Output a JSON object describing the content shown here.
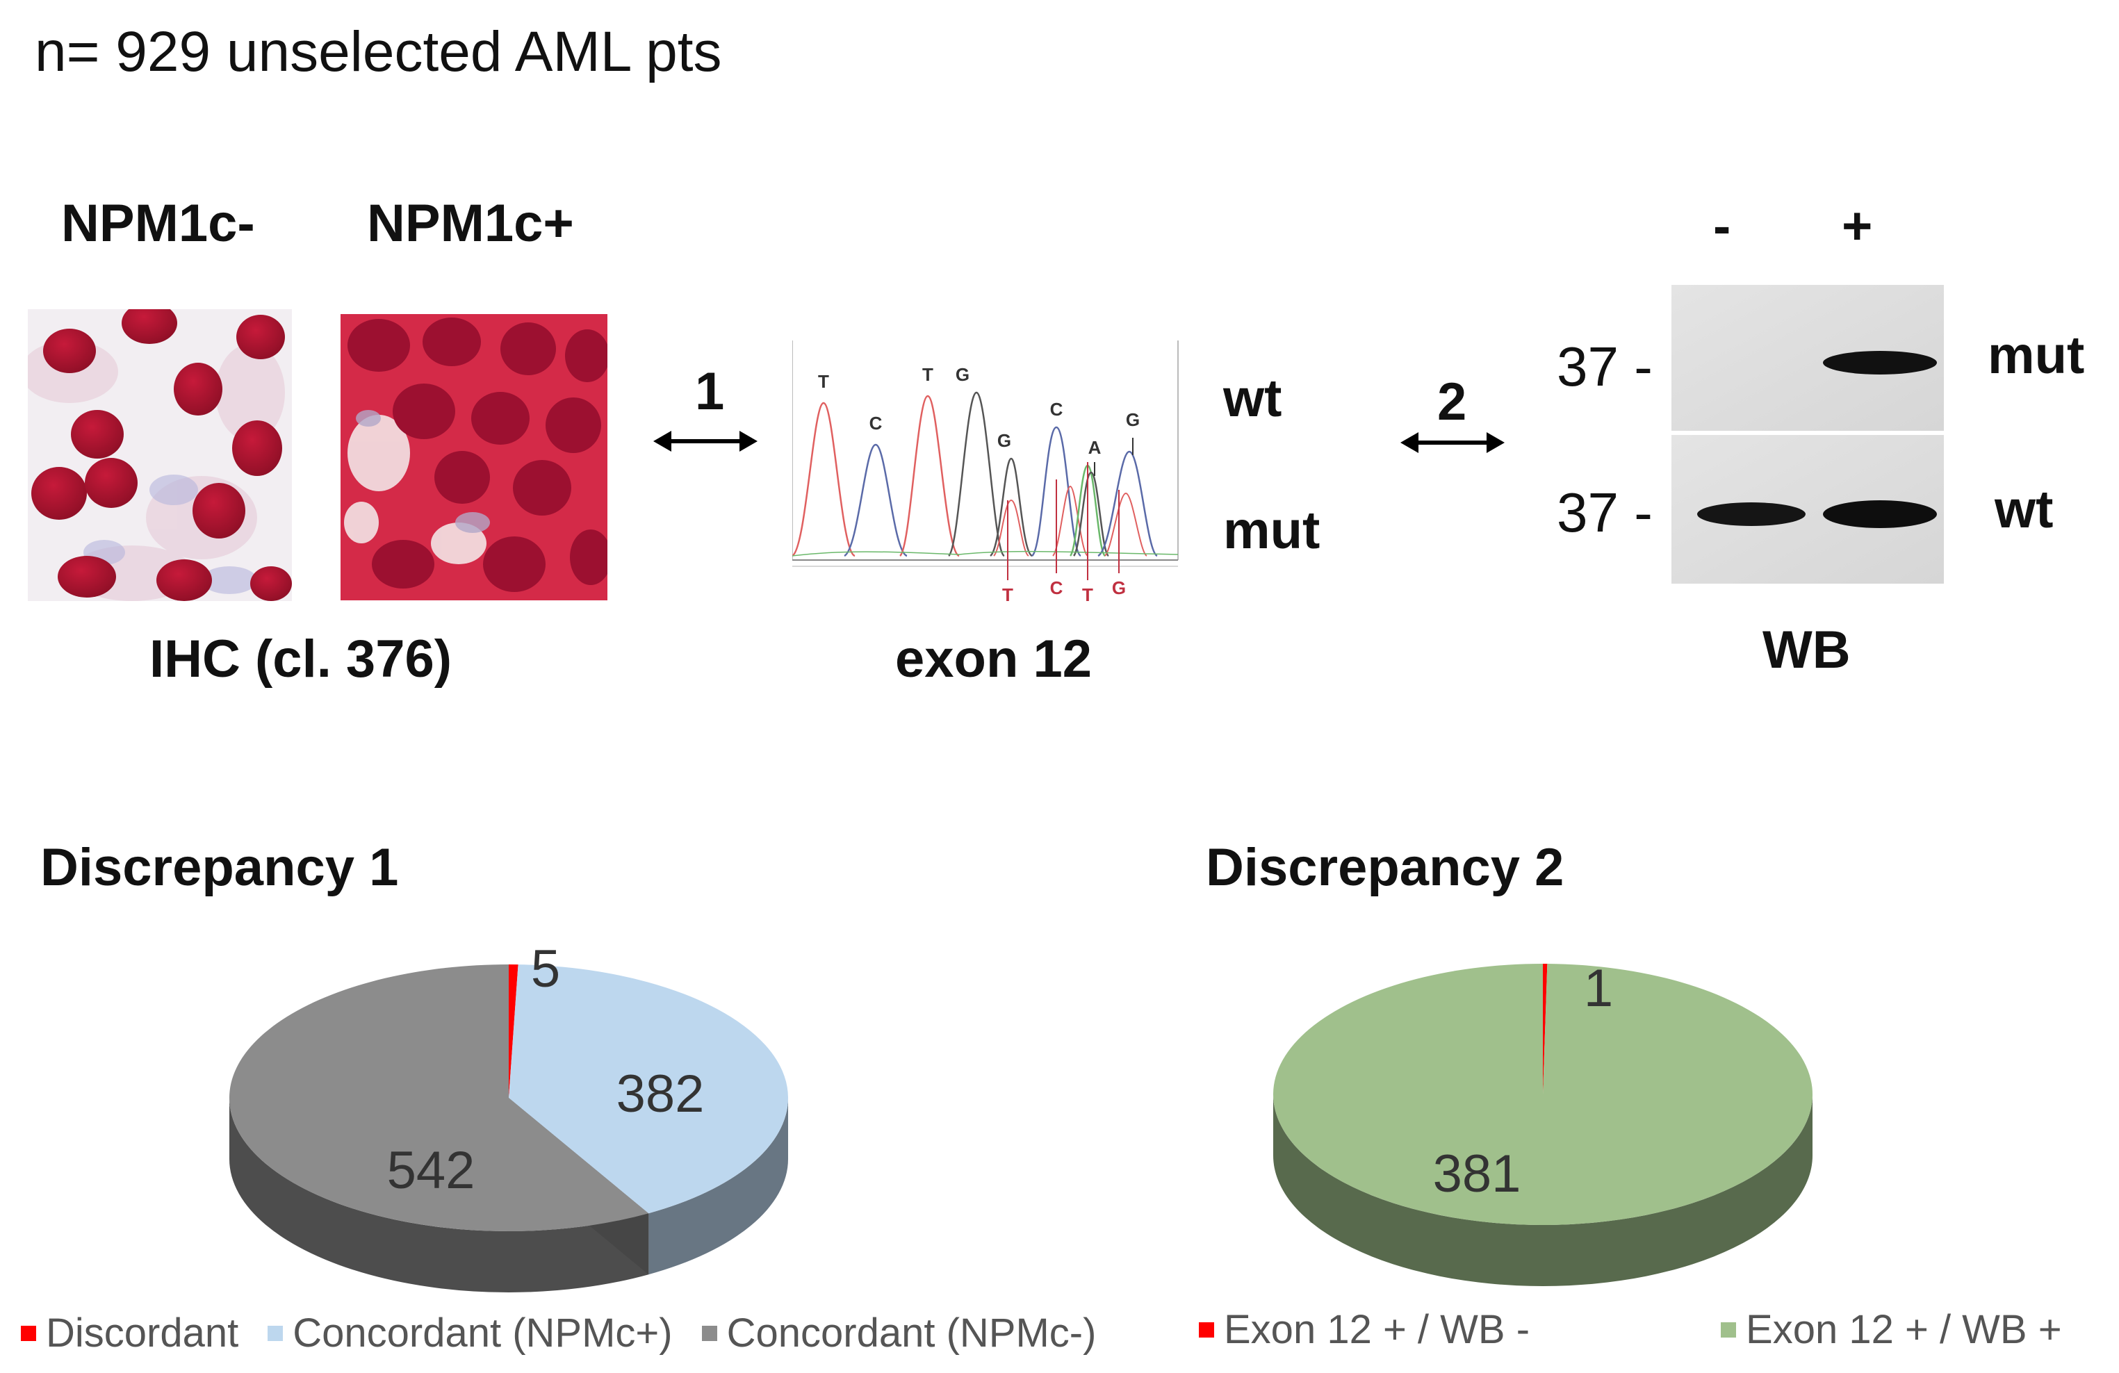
{
  "header": {
    "title": "n= 929 unselected AML pts"
  },
  "ihc": {
    "label_neg": "NPM1c-",
    "label_pos": "NPM1c+",
    "caption": "IHC (cl. 376)"
  },
  "sequencing": {
    "arrow1_label": "1",
    "top_bases": [
      "T",
      "C",
      "T",
      "G",
      "G",
      "C",
      "A",
      "G"
    ],
    "bottom_bases": [
      "T",
      "C",
      "T",
      "G"
    ],
    "wt_label": "wt",
    "mut_label": "mut",
    "caption": "exon 12"
  },
  "western_blot": {
    "arrow2_label": "2",
    "lane_neg": "-",
    "lane_pos": "+",
    "marker_top": "37 -",
    "marker_bottom": "37 -",
    "band_mut_label": "mut",
    "band_wt_label": "wt",
    "caption": "WB"
  },
  "chart_data": [
    {
      "type": "pie",
      "title": "Discrepancy 1",
      "categories": [
        "Discordant",
        "Concordant (NPMc+)",
        "Concordant (NPMc-)"
      ],
      "values": [
        5,
        382,
        542
      ],
      "data_labels": [
        "5",
        "382",
        "542"
      ],
      "colors": [
        "#ff0000",
        "#bdd7ee",
        "#8c8c8c"
      ],
      "legend_position": "bottom"
    },
    {
      "type": "pie",
      "title": "Discrepancy 2",
      "categories": [
        "Exon 12 + / WB -",
        "Exon 12 + / WB +"
      ],
      "values": [
        1,
        381
      ],
      "data_labels": [
        "1",
        "381"
      ],
      "colors": [
        "#ff0000",
        "#a0c08c"
      ],
      "legend_position": "bottom"
    }
  ]
}
